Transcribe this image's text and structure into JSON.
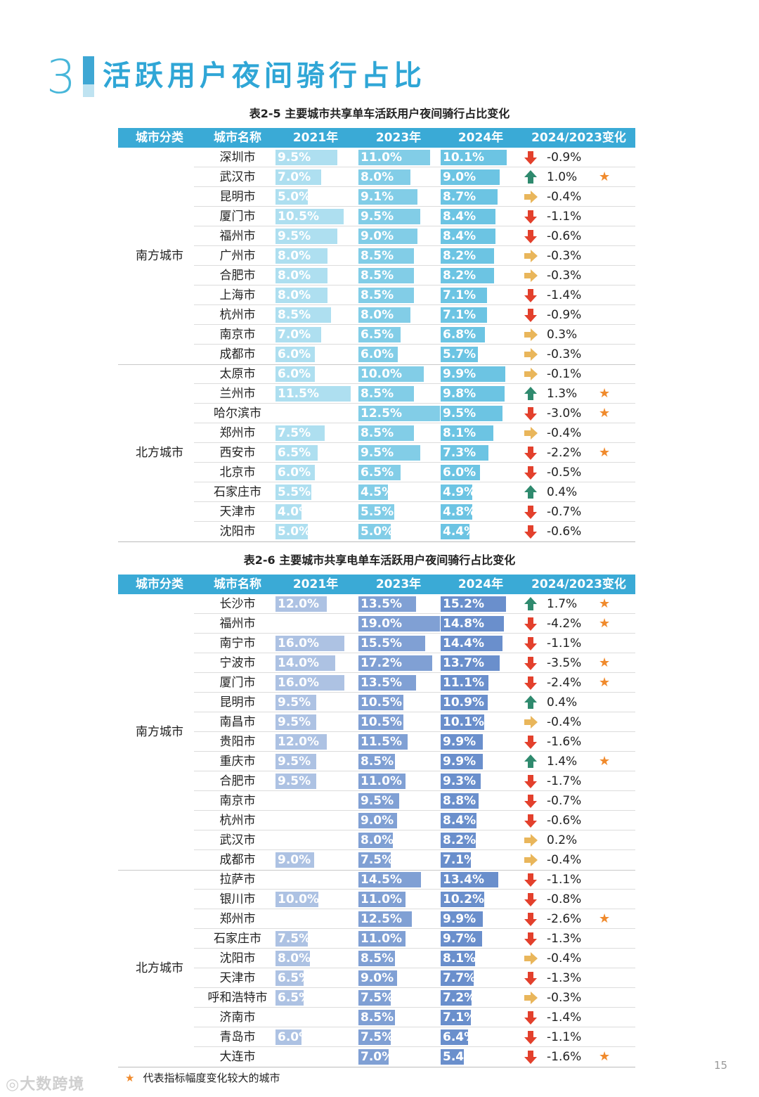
{
  "section": {
    "number": "3",
    "title": "活跃用户夜间骑行占比"
  },
  "colors": {
    "header_bg": "#3aaad6",
    "bike_bar": "#6cc4e3",
    "ebike_bar": "#6a8fcc",
    "up": "#2f8a6e",
    "down": "#e3402c",
    "flat": "#e9b65b",
    "star": "#f08a2c"
  },
  "table1": {
    "caption": "表2-5 主要城市共享单车活跃用户夜间骑行占比变化",
    "headers": [
      "城市分类",
      "城市名称",
      "2021年",
      "2023年",
      "2024年",
      "2024/2023变化"
    ],
    "max": 12.5,
    "groups": [
      {
        "label": "南方城市",
        "rows": [
          {
            "city": "深圳市",
            "y2021": "9.5%",
            "v2021": 9.5,
            "y2023": "11.0%",
            "v2023": 11.0,
            "y2024": "10.1%",
            "v2024": 10.1,
            "dir": "down",
            "change": "-0.9%",
            "star": false
          },
          {
            "city": "武汉市",
            "y2021": "7.0%",
            "v2021": 7.0,
            "y2023": "8.0%",
            "v2023": 8.0,
            "y2024": "9.0%",
            "v2024": 9.0,
            "dir": "up",
            "change": "1.0%",
            "star": true
          },
          {
            "city": "昆明市",
            "y2021": "5.0%",
            "v2021": 5.0,
            "y2023": "9.1%",
            "v2023": 9.1,
            "y2024": "8.7%",
            "v2024": 8.7,
            "dir": "flat",
            "change": "-0.4%",
            "star": false
          },
          {
            "city": "厦门市",
            "y2021": "10.5%",
            "v2021": 10.5,
            "y2023": "9.5%",
            "v2023": 9.5,
            "y2024": "8.4%",
            "v2024": 8.4,
            "dir": "down",
            "change": "-1.1%",
            "star": false
          },
          {
            "city": "福州市",
            "y2021": "9.5%",
            "v2021": 9.5,
            "y2023": "9.0%",
            "v2023": 9.0,
            "y2024": "8.4%",
            "v2024": 8.4,
            "dir": "down",
            "change": "-0.6%",
            "star": false
          },
          {
            "city": "广州市",
            "y2021": "8.0%",
            "v2021": 8.0,
            "y2023": "8.5%",
            "v2023": 8.5,
            "y2024": "8.2%",
            "v2024": 8.2,
            "dir": "flat",
            "change": "-0.3%",
            "star": false
          },
          {
            "city": "合肥市",
            "y2021": "8.0%",
            "v2021": 8.0,
            "y2023": "8.5%",
            "v2023": 8.5,
            "y2024": "8.2%",
            "v2024": 8.2,
            "dir": "flat",
            "change": "-0.3%",
            "star": false
          },
          {
            "city": "上海市",
            "y2021": "8.0%",
            "v2021": 8.0,
            "y2023": "8.5%",
            "v2023": 8.5,
            "y2024": "7.1%",
            "v2024": 7.1,
            "dir": "down",
            "change": "-1.4%",
            "star": false
          },
          {
            "city": "杭州市",
            "y2021": "8.5%",
            "v2021": 8.5,
            "y2023": "8.0%",
            "v2023": 8.0,
            "y2024": "7.1%",
            "v2024": 7.1,
            "dir": "down",
            "change": "-0.9%",
            "star": false
          },
          {
            "city": "南京市",
            "y2021": "7.0%",
            "v2021": 7.0,
            "y2023": "6.5%",
            "v2023": 6.5,
            "y2024": "6.8%",
            "v2024": 6.8,
            "dir": "flat",
            "change": "0.3%",
            "star": false
          },
          {
            "city": "成都市",
            "y2021": "6.0%",
            "v2021": 6.0,
            "y2023": "6.0%",
            "v2023": 6.0,
            "y2024": "5.7%",
            "v2024": 5.7,
            "dir": "flat",
            "change": "-0.3%",
            "star": false
          }
        ]
      },
      {
        "label": "北方城市",
        "rows": [
          {
            "city": "太原市",
            "y2021": "6.0%",
            "v2021": 6.0,
            "y2023": "10.0%",
            "v2023": 10.0,
            "y2024": "9.9%",
            "v2024": 9.9,
            "dir": "flat",
            "change": "-0.1%",
            "star": false
          },
          {
            "city": "兰州市",
            "y2021": "11.5%",
            "v2021": 11.5,
            "y2023": "8.5%",
            "v2023": 8.5,
            "y2024": "9.8%",
            "v2024": 9.8,
            "dir": "up",
            "change": "1.3%",
            "star": true
          },
          {
            "city": "哈尔滨市",
            "y2021": "",
            "v2021": null,
            "y2023": "12.5%",
            "v2023": 12.5,
            "y2024": "9.5%",
            "v2024": 9.5,
            "dir": "down",
            "change": "-3.0%",
            "star": true
          },
          {
            "city": "郑州市",
            "y2021": "7.5%",
            "v2021": 7.5,
            "y2023": "8.5%",
            "v2023": 8.5,
            "y2024": "8.1%",
            "v2024": 8.1,
            "dir": "flat",
            "change": "-0.4%",
            "star": false
          },
          {
            "city": "西安市",
            "y2021": "6.5%",
            "v2021": 6.5,
            "y2023": "9.5%",
            "v2023": 9.5,
            "y2024": "7.3%",
            "v2024": 7.3,
            "dir": "down",
            "change": "-2.2%",
            "star": true
          },
          {
            "city": "北京市",
            "y2021": "6.0%",
            "v2021": 6.0,
            "y2023": "6.5%",
            "v2023": 6.5,
            "y2024": "6.0%",
            "v2024": 6.0,
            "dir": "down",
            "change": "-0.5%",
            "star": false
          },
          {
            "city": "石家庄市",
            "y2021": "5.5%",
            "v2021": 5.5,
            "y2023": "4.5%",
            "v2023": 4.5,
            "y2024": "4.9%",
            "v2024": 4.9,
            "dir": "up",
            "change": "0.4%",
            "star": false
          },
          {
            "city": "天津市",
            "y2021": "4.0%",
            "v2021": 4.0,
            "y2023": "5.5%",
            "v2023": 5.5,
            "y2024": "4.8%",
            "v2024": 4.8,
            "dir": "down",
            "change": "-0.7%",
            "star": false
          },
          {
            "city": "沈阳市",
            "y2021": "5.0%",
            "v2021": 5.0,
            "y2023": "5.0%",
            "v2023": 5.0,
            "y2024": "4.4%",
            "v2024": 4.4,
            "dir": "down",
            "change": "-0.6%",
            "star": false
          }
        ]
      }
    ]
  },
  "table2": {
    "caption": "表2-6 主要城市共享电单车活跃用户夜间骑行占比变化",
    "headers": [
      "城市分类",
      "城市名称",
      "2021年",
      "2023年",
      "2024年",
      "2024/2023变化"
    ],
    "max": 19.0,
    "groups": [
      {
        "label": "南方城市",
        "rows": [
          {
            "city": "长沙市",
            "y2021": "12.0%",
            "v2021": 12.0,
            "y2023": "13.5%",
            "v2023": 13.5,
            "y2024": "15.2%",
            "v2024": 15.2,
            "dir": "up",
            "change": "1.7%",
            "star": true
          },
          {
            "city": "福州市",
            "y2021": "",
            "v2021": null,
            "y2023": "19.0%",
            "v2023": 19.0,
            "y2024": "14.8%",
            "v2024": 14.8,
            "dir": "down",
            "change": "-4.2%",
            "star": true
          },
          {
            "city": "南宁市",
            "y2021": "16.0%",
            "v2021": 16.0,
            "y2023": "15.5%",
            "v2023": 15.5,
            "y2024": "14.4%",
            "v2024": 14.4,
            "dir": "down",
            "change": "-1.1%",
            "star": false
          },
          {
            "city": "宁波市",
            "y2021": "14.0%",
            "v2021": 14.0,
            "y2023": "17.2%",
            "v2023": 17.2,
            "y2024": "13.7%",
            "v2024": 13.7,
            "dir": "down",
            "change": "-3.5%",
            "star": true
          },
          {
            "city": "厦门市",
            "y2021": "16.0%",
            "v2021": 16.0,
            "y2023": "13.5%",
            "v2023": 13.5,
            "y2024": "11.1%",
            "v2024": 11.1,
            "dir": "down",
            "change": "-2.4%",
            "star": true
          },
          {
            "city": "昆明市",
            "y2021": "9.5%",
            "v2021": 9.5,
            "y2023": "10.5%",
            "v2023": 10.5,
            "y2024": "10.9%",
            "v2024": 10.9,
            "dir": "up",
            "change": "0.4%",
            "star": false
          },
          {
            "city": "南昌市",
            "y2021": "9.5%",
            "v2021": 9.5,
            "y2023": "10.5%",
            "v2023": 10.5,
            "y2024": "10.1%",
            "v2024": 10.1,
            "dir": "flat",
            "change": "-0.4%",
            "star": false
          },
          {
            "city": "贵阳市",
            "y2021": "12.0%",
            "v2021": 12.0,
            "y2023": "11.5%",
            "v2023": 11.5,
            "y2024": "9.9%",
            "v2024": 9.9,
            "dir": "down",
            "change": "-1.6%",
            "star": false
          },
          {
            "city": "重庆市",
            "y2021": "9.5%",
            "v2021": 9.5,
            "y2023": "8.5%",
            "v2023": 8.5,
            "y2024": "9.9%",
            "v2024": 9.9,
            "dir": "up",
            "change": "1.4%",
            "star": true
          },
          {
            "city": "合肥市",
            "y2021": "9.5%",
            "v2021": 9.5,
            "y2023": "11.0%",
            "v2023": 11.0,
            "y2024": "9.3%",
            "v2024": 9.3,
            "dir": "down",
            "change": "-1.7%",
            "star": false
          },
          {
            "city": "南京市",
            "y2021": "",
            "v2021": null,
            "y2023": "9.5%",
            "v2023": 9.5,
            "y2024": "8.8%",
            "v2024": 8.8,
            "dir": "down",
            "change": "-0.7%",
            "star": false
          },
          {
            "city": "杭州市",
            "y2021": "",
            "v2021": null,
            "y2023": "9.0%",
            "v2023": 9.0,
            "y2024": "8.4%",
            "v2024": 8.4,
            "dir": "down",
            "change": "-0.6%",
            "star": false
          },
          {
            "city": "武汉市",
            "y2021": "",
            "v2021": null,
            "y2023": "8.0%",
            "v2023": 8.0,
            "y2024": "8.2%",
            "v2024": 8.2,
            "dir": "flat",
            "change": "0.2%",
            "star": false
          },
          {
            "city": "成都市",
            "y2021": "9.0%",
            "v2021": 9.0,
            "y2023": "7.5%",
            "v2023": 7.5,
            "y2024": "7.1%",
            "v2024": 7.1,
            "dir": "flat",
            "change": "-0.4%",
            "star": false
          }
        ]
      },
      {
        "label": "北方城市",
        "rows": [
          {
            "city": "拉萨市",
            "y2021": "",
            "v2021": null,
            "y2023": "14.5%",
            "v2023": 14.5,
            "y2024": "13.4%",
            "v2024": 13.4,
            "dir": "down",
            "change": "-1.1%",
            "star": false
          },
          {
            "city": "银川市",
            "y2021": "10.0%",
            "v2021": 10.0,
            "y2023": "11.0%",
            "v2023": 11.0,
            "y2024": "10.2%",
            "v2024": 10.2,
            "dir": "down",
            "change": "-0.8%",
            "star": false
          },
          {
            "city": "郑州市",
            "y2021": "",
            "v2021": null,
            "y2023": "12.5%",
            "v2023": 12.5,
            "y2024": "9.9%",
            "v2024": 9.9,
            "dir": "down",
            "change": "-2.6%",
            "star": true
          },
          {
            "city": "石家庄市",
            "y2021": "7.5%",
            "v2021": 7.5,
            "y2023": "11.0%",
            "v2023": 11.0,
            "y2024": "9.7%",
            "v2024": 9.7,
            "dir": "down",
            "change": "-1.3%",
            "star": false
          },
          {
            "city": "沈阳市",
            "y2021": "8.0%",
            "v2021": 8.0,
            "y2023": "8.5%",
            "v2023": 8.5,
            "y2024": "8.1%",
            "v2024": 8.1,
            "dir": "flat",
            "change": "-0.4%",
            "star": false
          },
          {
            "city": "天津市",
            "y2021": "6.5%",
            "v2021": 6.5,
            "y2023": "9.0%",
            "v2023": 9.0,
            "y2024": "7.7%",
            "v2024": 7.7,
            "dir": "down",
            "change": "-1.3%",
            "star": false
          },
          {
            "city": "呼和浩特市",
            "y2021": "6.5%",
            "v2021": 6.5,
            "y2023": "7.5%",
            "v2023": 7.5,
            "y2024": "7.2%",
            "v2024": 7.2,
            "dir": "flat",
            "change": "-0.3%",
            "star": false
          },
          {
            "city": "济南市",
            "y2021": "",
            "v2021": null,
            "y2023": "8.5%",
            "v2023": 8.5,
            "y2024": "7.1%",
            "v2024": 7.1,
            "dir": "down",
            "change": "-1.4%",
            "star": false
          },
          {
            "city": "青岛市",
            "y2021": "6.0%",
            "v2021": 6.0,
            "y2023": "7.5%",
            "v2023": 7.5,
            "y2024": "6.4%",
            "v2024": 6.4,
            "dir": "down",
            "change": "-1.1%",
            "star": false
          },
          {
            "city": "大连市",
            "y2021": "",
            "v2021": null,
            "y2023": "7.0%",
            "v2023": 7.0,
            "y2024": "5.4%",
            "v2024": 5.4,
            "dir": "down",
            "change": "-1.6%",
            "star": true
          }
        ]
      }
    ]
  },
  "legend": {
    "star_symbol": "★",
    "text": "代表指标幅度变化较大的城市"
  },
  "page_number": "15",
  "watermark": "大数跨境"
}
